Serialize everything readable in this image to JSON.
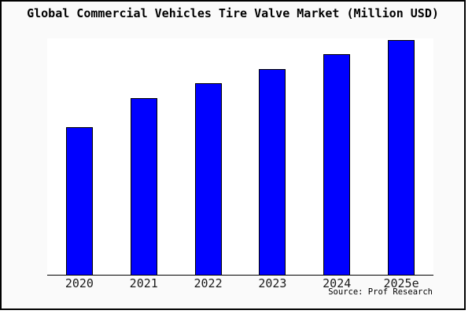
{
  "chart": {
    "title": "Global Commercial Vehicles Tire Valve Market (Million USD)",
    "source_credit": "Source: Prof Research",
    "colors": {
      "bar_fill": "#0000FF",
      "bar_border": "#000000",
      "plot_background": "#FFFFFF",
      "figure_background": "#FAFAFA",
      "frame_border": "#000000",
      "axis_line": "#000000",
      "text": "#000000"
    }
  },
  "chart_data": {
    "type": "bar",
    "title": "Global Commercial Vehicles Tire Valve Market (Million USD)",
    "categories": [
      "2020",
      "2021",
      "2022",
      "2023",
      "2024",
      "2025e"
    ],
    "values": [
      62.9,
      75.3,
      81.6,
      87.6,
      94.0,
      100.0
    ],
    "units": "relative index (no y-axis scale shown in chart; 2025e = 100)",
    "xlabel": "",
    "ylabel": "",
    "ylim": [
      0,
      100.7
    ],
    "grid": false,
    "legend": false,
    "bar_color": "#0000FF",
    "source": "Source: Prof Research"
  }
}
